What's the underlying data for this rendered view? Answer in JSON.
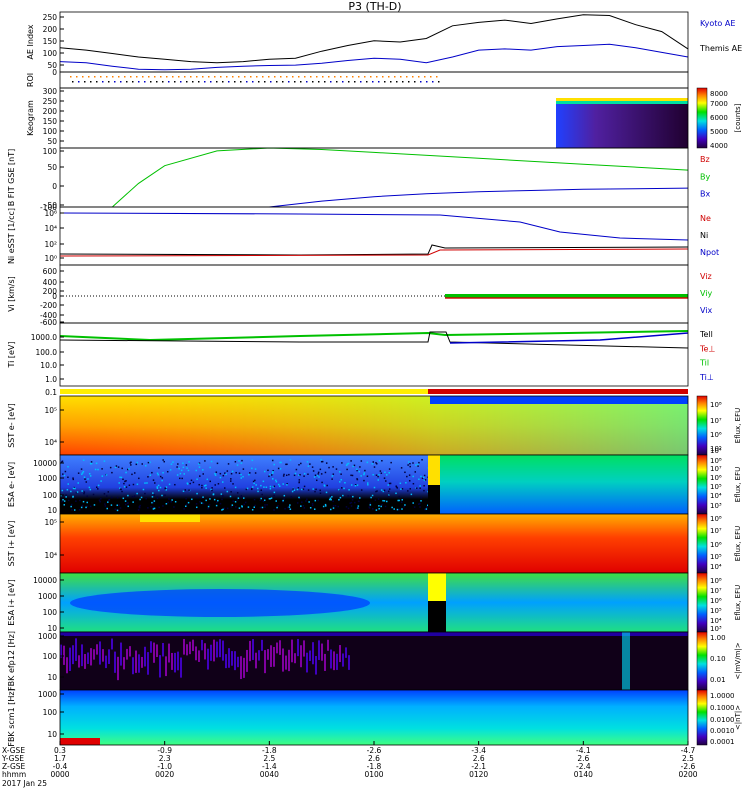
{
  "title": "P3 (TH-D)",
  "colors": {
    "red": "#d00000",
    "green": "#00c000",
    "blue": "#0000c8",
    "black": "#000000"
  },
  "chart_data": [
    {
      "type": "line",
      "id": "ae",
      "ylabel": "AE Index",
      "yticks": [
        "250",
        "200",
        "150",
        "100",
        "50",
        "0"
      ],
      "legend": [
        {
          "label": "Kyoto AE",
          "color": "#0000c8"
        },
        {
          "label": "Themis AE",
          "color": "#000000"
        }
      ],
      "series": [
        {
          "name": "Themis AE",
          "x": [
            0,
            5,
            10,
            15,
            20,
            25,
            30,
            35,
            40,
            45,
            50,
            55,
            60,
            65,
            70,
            75,
            80,
            85,
            90,
            95,
            100,
            105,
            110,
            115,
            120
          ],
          "values": [
            105,
            95,
            80,
            65,
            55,
            45,
            40,
            45,
            55,
            60,
            90,
            115,
            135,
            130,
            145,
            200,
            215,
            225,
            210,
            230,
            248,
            245,
            205,
            175,
            100
          ]
        },
        {
          "name": "Kyoto AE",
          "x": [
            0,
            5,
            10,
            15,
            20,
            25,
            30,
            35,
            40,
            45,
            50,
            55,
            60,
            65,
            70,
            75,
            80,
            85,
            90,
            95,
            100,
            105,
            110,
            115,
            120
          ],
          "values": [
            45,
            40,
            25,
            12,
            10,
            12,
            20,
            25,
            28,
            30,
            38,
            50,
            60,
            55,
            40,
            65,
            95,
            100,
            95,
            110,
            115,
            120,
            105,
            85,
            65
          ]
        }
      ]
    },
    {
      "type": "heatmap",
      "id": "roi",
      "ylabel": "ROI"
    },
    {
      "type": "heatmap",
      "id": "keogram",
      "ylabel": "Keogram",
      "yticks": [
        "300",
        "250",
        "200",
        "150",
        "100",
        "50"
      ],
      "colorbar": {
        "ticks": [
          "8000",
          "7000",
          "6000",
          "5000",
          "4000"
        ],
        "label": "[counts]"
      }
    },
    {
      "type": "line",
      "id": "bfield",
      "ylabel": "B FIT GSE [nT]",
      "yticks": [
        "100",
        "50",
        "0",
        "-50",
        "-100"
      ],
      "legend": [
        {
          "label": "Bz",
          "color": "#d00000"
        },
        {
          "label": "By",
          "color": "#00c000"
        },
        {
          "label": "Bx",
          "color": "#0000c8"
        }
      ],
      "series": [
        {
          "name": "By",
          "x": [
            10,
            15,
            20,
            30,
            40,
            50,
            60,
            80,
            100,
            120
          ],
          "values": [
            -100,
            -20,
            40,
            90,
            100,
            95,
            85,
            65,
            45,
            25
          ]
        },
        {
          "name": "Bx",
          "x": [
            40,
            50,
            60,
            70,
            80,
            90,
            100,
            110,
            120
          ],
          "values": [
            -100,
            -80,
            -65,
            -55,
            -48,
            -44,
            -40,
            -38,
            -36
          ]
        }
      ]
    },
    {
      "type": "line",
      "id": "density",
      "ylabel": "Ni eSST [1/cc]",
      "yticks": [
        "10⁶",
        "10⁴",
        "10²",
        "10⁰"
      ],
      "legend": [
        {
          "label": "Ne",
          "color": "#d00000"
        },
        {
          "label": "Ni",
          "color": "#000000"
        },
        {
          "label": "Npot",
          "color": "#0000c8"
        }
      ]
    },
    {
      "type": "line",
      "id": "velocity",
      "ylabel": "Vi [km/s]",
      "yticks": [
        "600",
        "400",
        "200",
        "0",
        "-200",
        "-400",
        "-600"
      ],
      "legend": [
        {
          "label": "Viz",
          "color": "#d00000"
        },
        {
          "label": "Viy",
          "color": "#00c000"
        },
        {
          "label": "Vix",
          "color": "#0000c8"
        }
      ]
    },
    {
      "type": "line",
      "id": "temperature",
      "ylabel": "Ti [eV]",
      "yticks": [
        "1000.0",
        "100.0",
        "10.0",
        "1.0",
        "0.1"
      ],
      "legend": [
        {
          "label": "Tell",
          "color": "#000000"
        },
        {
          "label": "Te⊥",
          "color": "#d00000"
        },
        {
          "label": "Til",
          "color": "#00c000"
        },
        {
          "label": "Ti⊥",
          "color": "#0000c8"
        }
      ]
    },
    {
      "type": "heatmap",
      "id": "sst-e",
      "ylabel": "SST e- [eV]",
      "yticks": [
        "10⁵",
        "10⁴"
      ],
      "colorbar": {
        "ticks": [
          "10⁸",
          "10⁷",
          "10⁶",
          "10⁵",
          "10⁴"
        ],
        "label": "Eflux, EFU"
      }
    },
    {
      "type": "heatmap",
      "id": "esa-e",
      "ylabel": "ESA e- [eV]",
      "yticks": [
        "10000",
        "1000",
        "100",
        "10"
      ],
      "colorbar": {
        "ticks": [
          "10⁸",
          "10⁷",
          "10⁶",
          "10⁵",
          "10⁴",
          "10³"
        ],
        "label": "Eflux, EFU"
      }
    },
    {
      "type": "heatmap",
      "id": "sst-i",
      "ylabel": "SST i+ [eV]",
      "yticks": [
        "10⁵",
        "10⁴"
      ],
      "colorbar": {
        "ticks": [
          "10⁸",
          "10⁷",
          "10⁶",
          "10⁵",
          "10⁴"
        ],
        "label": "Eflux, EFU"
      }
    },
    {
      "type": "heatmap",
      "id": "esa-i",
      "ylabel": "ESA i+ [eV]",
      "yticks": [
        "10000",
        "1000",
        "100",
        "10"
      ],
      "colorbar": {
        "ticks": [
          "10⁸",
          "10⁷",
          "10⁶",
          "10⁵",
          "10⁴",
          "10³"
        ],
        "label": "Eflux, EFU"
      }
    },
    {
      "type": "heatmap",
      "id": "fbk-e",
      "ylabel": "FBK efp12 [Hz]",
      "yticks": [
        "1000",
        "100",
        "10"
      ],
      "colorbar": {
        "ticks": [
          "1.00",
          "0.10",
          "0.01"
        ],
        "label": "<|mV/m|>"
      }
    },
    {
      "type": "heatmap",
      "id": "fbk-b",
      "ylabel": "FBK scm1 [Hz]",
      "yticks": [
        "1000",
        "100",
        "10"
      ],
      "colorbar": {
        "ticks": [
          "1.0000",
          "0.1000",
          "0.0100",
          "0.0010",
          "0.0001"
        ],
        "label": "<|nT|>"
      }
    }
  ],
  "x_axis": {
    "row_labels": [
      "X-GSE",
      "Y-GSE",
      "Z-GSE",
      "hhmm",
      "2017 Jan 25"
    ],
    "ticks": [
      {
        "x": "0.3",
        "y": "1.7",
        "z": "-0.4",
        "t": "0000"
      },
      {
        "x": "-0.9",
        "y": "2.3",
        "z": "-1.0",
        "t": "0020"
      },
      {
        "x": "-1.8",
        "y": "2.5",
        "z": "-1.4",
        "t": "0040"
      },
      {
        "x": "-2.6",
        "y": "2.6",
        "z": "-1.8",
        "t": "0100"
      },
      {
        "x": "-3.4",
        "y": "2.6",
        "z": "-2.1",
        "t": "0120"
      },
      {
        "x": "-4.1",
        "y": "2.6",
        "z": "-2.4",
        "t": "0140"
      },
      {
        "x": "-4.7",
        "y": "2.5",
        "z": "-2.6",
        "t": "0200"
      }
    ]
  }
}
